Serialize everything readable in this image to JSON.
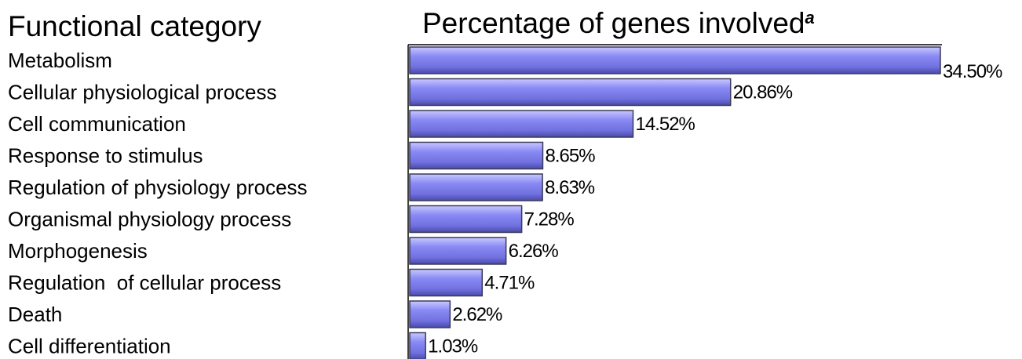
{
  "chart_data": {
    "type": "bar",
    "orientation": "horizontal",
    "category_header": "Functional category",
    "value_header": "Percentage of genes involved",
    "value_header_superscript": "a",
    "categories": [
      "Metabolism",
      "Cellular physiological process",
      "Cell communication",
      "Response to stimulus",
      "Regulation of physiology process",
      "Organismal physiology process",
      "Morphogenesis",
      "Regulation  of cellular process",
      "Death",
      "Cell differentiation"
    ],
    "values": [
      34.5,
      20.86,
      14.52,
      8.65,
      8.63,
      7.28,
      6.26,
      4.71,
      2.62,
      1.03
    ],
    "value_labels": [
      "34.50%",
      "20.86%",
      "14.52%",
      "8.65%",
      "8.63%",
      "7.28%",
      "6.26%",
      "4.71%",
      "2.62%",
      "1.03%"
    ],
    "bar_color": "#8080f0",
    "bar_edge_color": "#3a3a5a",
    "axis_color": "#000000"
  }
}
